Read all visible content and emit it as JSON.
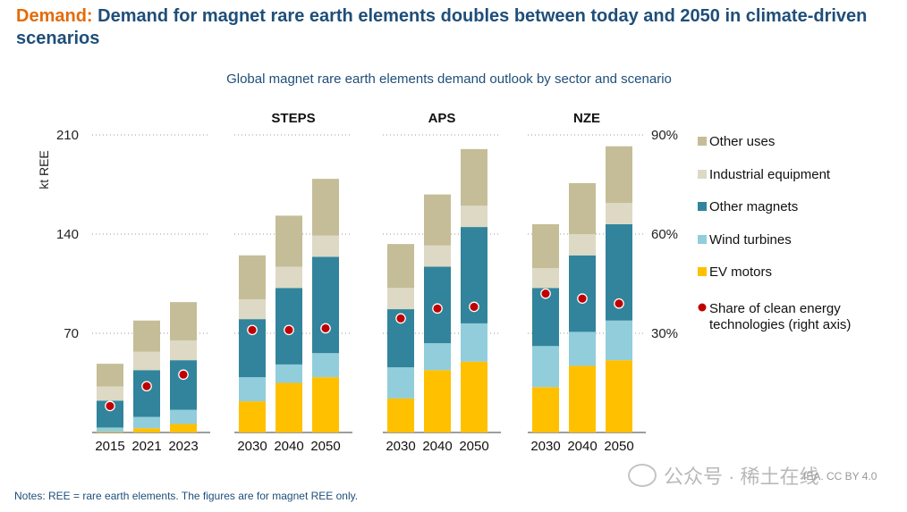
{
  "header": {
    "title_lead": "Demand:",
    "title_rest": "Demand for magnet rare earth elements doubles between today and 2050 in climate-driven scenarios",
    "subtitle": "Global magnet rare earth elements demand outlook by sector and scenario"
  },
  "footer": {
    "notes": "Notes: REE = rare earth elements. The figures are for magnet REE only.",
    "credit": "IEA. CC BY 4.0",
    "watermark": "公众号 · 稀土在线"
  },
  "chart_data": {
    "type": "bar",
    "stacked": true,
    "ylabel": "kt REE",
    "ylim": [
      0,
      210
    ],
    "yticks": [
      70,
      140,
      210
    ],
    "y2lim": [
      0,
      0.9
    ],
    "y2ticks": [
      "30%",
      "60%",
      "90%"
    ],
    "grid": "horizontal dotted",
    "legend_position": "right",
    "groups": [
      {
        "label": "",
        "categories": [
          "2015",
          "2021",
          "2023"
        ]
      },
      {
        "label": "STEPS",
        "categories": [
          "2030",
          "2040",
          "2050"
        ]
      },
      {
        "label": "APS",
        "categories": [
          "2030",
          "2040",
          "2050"
        ]
      },
      {
        "label": "NZE",
        "categories": [
          "2030",
          "2040",
          "2050"
        ]
      }
    ],
    "series": [
      {
        "name": "EV motors",
        "color": "#ffc000",
        "values": [
          0.5,
          3,
          6,
          22,
          35,
          39,
          24,
          44,
          50,
          32,
          47,
          51
        ]
      },
      {
        "name": "Wind turbines",
        "color": "#92cddc",
        "values": [
          3,
          8,
          10,
          17,
          13,
          17,
          22,
          19,
          27,
          29,
          24,
          28
        ]
      },
      {
        "name": "Other magnets",
        "color": "#31849b",
        "values": [
          19,
          33,
          35,
          41,
          54,
          68,
          41,
          54,
          68,
          41,
          54,
          68
        ]
      },
      {
        "name": "Industrial equipment",
        "color": "#ddd9c4",
        "values": [
          10,
          13,
          14,
          14,
          15,
          15,
          15,
          15,
          15,
          14,
          15,
          15
        ]
      },
      {
        "name": "Other uses",
        "color": "#c4bd97",
        "values": [
          16,
          22,
          27,
          31,
          36,
          40,
          31,
          36,
          40,
          31,
          36,
          40
        ]
      }
    ],
    "share_series": {
      "name": "Share of clean energy technologies (right axis)",
      "color": "#c00000",
      "values": [
        0.08,
        0.14,
        0.175,
        0.31,
        0.31,
        0.315,
        0.345,
        0.375,
        0.38,
        0.42,
        0.405,
        0.39
      ]
    }
  }
}
